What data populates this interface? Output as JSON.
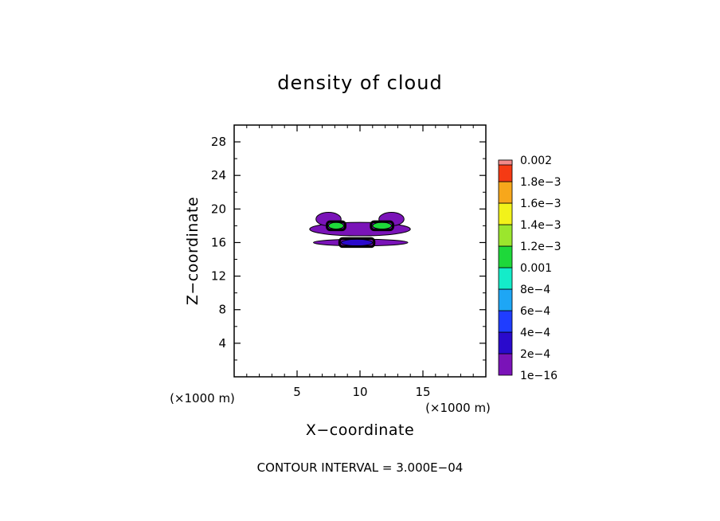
{
  "chart_data": {
    "type": "heatmap",
    "title": "density of cloud",
    "xlabel": "X−coordinate",
    "ylabel": "Z−coordinate",
    "x_unit_label": "(×1000 m)",
    "y_unit_label": "(×1000 m)",
    "xlim": [
      0,
      20
    ],
    "ylim": [
      0,
      30
    ],
    "x_ticks": [
      5,
      10,
      15
    ],
    "y_ticks": [
      4,
      8,
      12,
      16,
      20,
      24,
      28
    ],
    "colorbar": {
      "labels": [
        "1e−16",
        "2e−4",
        "4e−4",
        "6e−4",
        "8e−4",
        "0.001",
        "1.2e−3",
        "1.4e−3",
        "1.6e−3",
        "1.8e−3",
        "0.002"
      ],
      "colors": [
        "#7a13b8",
        "#2a0acc",
        "#1f3dff",
        "#1ea6f5",
        "#14ecc9",
        "#1ed83a",
        "#9be62d",
        "#f2f21a",
        "#f7a71b",
        "#f53a14",
        "#f28a8a"
      ]
    },
    "annotation": "CONTOUR INTERVAL = 3.000E−04",
    "regions": [
      {
        "name": "main-band",
        "level": "1e-16",
        "x": [
          6.0,
          14.0
        ],
        "z": [
          16.8,
          18.4
        ]
      },
      {
        "name": "left-plume",
        "level": "1e-16",
        "x": [
          6.5,
          8.5
        ],
        "z": [
          18.0,
          19.6
        ]
      },
      {
        "name": "right-plume",
        "level": "1e-16",
        "x": [
          11.5,
          13.5
        ],
        "z": [
          18.0,
          19.6
        ]
      },
      {
        "name": "lower-band",
        "level": "1e-16",
        "x": [
          6.3,
          13.8
        ],
        "z": [
          15.6,
          16.4
        ]
      },
      {
        "name": "left-core",
        "level": "0.001",
        "x": [
          7.5,
          8.7
        ],
        "z": [
          17.6,
          18.4
        ]
      },
      {
        "name": "right-core",
        "level": "0.001",
        "x": [
          11.0,
          12.5
        ],
        "z": [
          17.6,
          18.4
        ]
      },
      {
        "name": "lower-core",
        "level": "2e-4",
        "x": [
          8.5,
          11.0
        ],
        "z": [
          15.6,
          16.4
        ]
      }
    ]
  }
}
